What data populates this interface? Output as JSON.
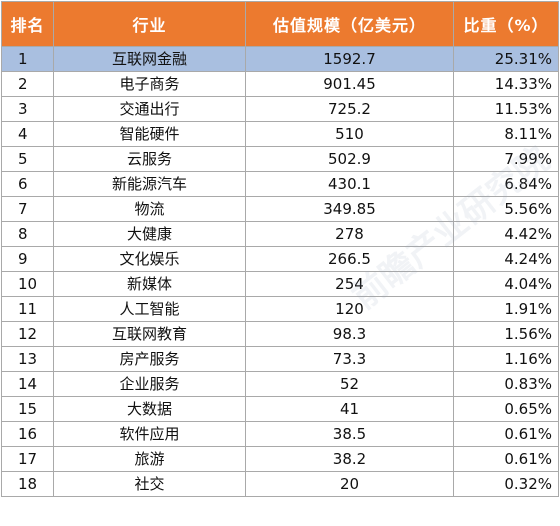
{
  "headers": {
    "rank": "排名",
    "industry": "行业",
    "value": "估值规模（亿美元）",
    "share": "比重（%）"
  },
  "rows": [
    {
      "rank": "1",
      "industry": "互联网金融",
      "value": "1592.7",
      "share": "25.31%"
    },
    {
      "rank": "2",
      "industry": "电子商务",
      "value": "901.45",
      "share": "14.33%"
    },
    {
      "rank": "3",
      "industry": "交通出行",
      "value": "725.2",
      "share": "11.53%"
    },
    {
      "rank": "4",
      "industry": "智能硬件",
      "value": "510",
      "share": "8.11%"
    },
    {
      "rank": "5",
      "industry": "云服务",
      "value": "502.9",
      "share": "7.99%"
    },
    {
      "rank": "6",
      "industry": "新能源汽车",
      "value": "430.1",
      "share": "6.84%"
    },
    {
      "rank": "7",
      "industry": "物流",
      "value": "349.85",
      "share": "5.56%"
    },
    {
      "rank": "8",
      "industry": "大健康",
      "value": "278",
      "share": "4.42%"
    },
    {
      "rank": "9",
      "industry": "文化娱乐",
      "value": "266.5",
      "share": "4.24%"
    },
    {
      "rank": "10",
      "industry": "新媒体",
      "value": "254",
      "share": "4.04%"
    },
    {
      "rank": "11",
      "industry": "人工智能",
      "value": "120",
      "share": "1.91%"
    },
    {
      "rank": "12",
      "industry": "互联网教育",
      "value": "98.3",
      "share": "1.56%"
    },
    {
      "rank": "13",
      "industry": "房产服务",
      "value": "73.3",
      "share": "1.16%"
    },
    {
      "rank": "14",
      "industry": "企业服务",
      "value": "52",
      "share": "0.83%"
    },
    {
      "rank": "15",
      "industry": "大数据",
      "value": "41",
      "share": "0.65%"
    },
    {
      "rank": "16",
      "industry": "软件应用",
      "value": "38.5",
      "share": "0.61%"
    },
    {
      "rank": "17",
      "industry": "旅游",
      "value": "38.2",
      "share": "0.61%"
    },
    {
      "rank": "18",
      "industry": "社交",
      "value": "20",
      "share": "0.32%"
    }
  ],
  "watermark": "前瞻产业研究院",
  "colors": {
    "header_bg": "#ec7a2f",
    "highlight_row": "#a9bfe0",
    "border": "#a9a9a9"
  }
}
